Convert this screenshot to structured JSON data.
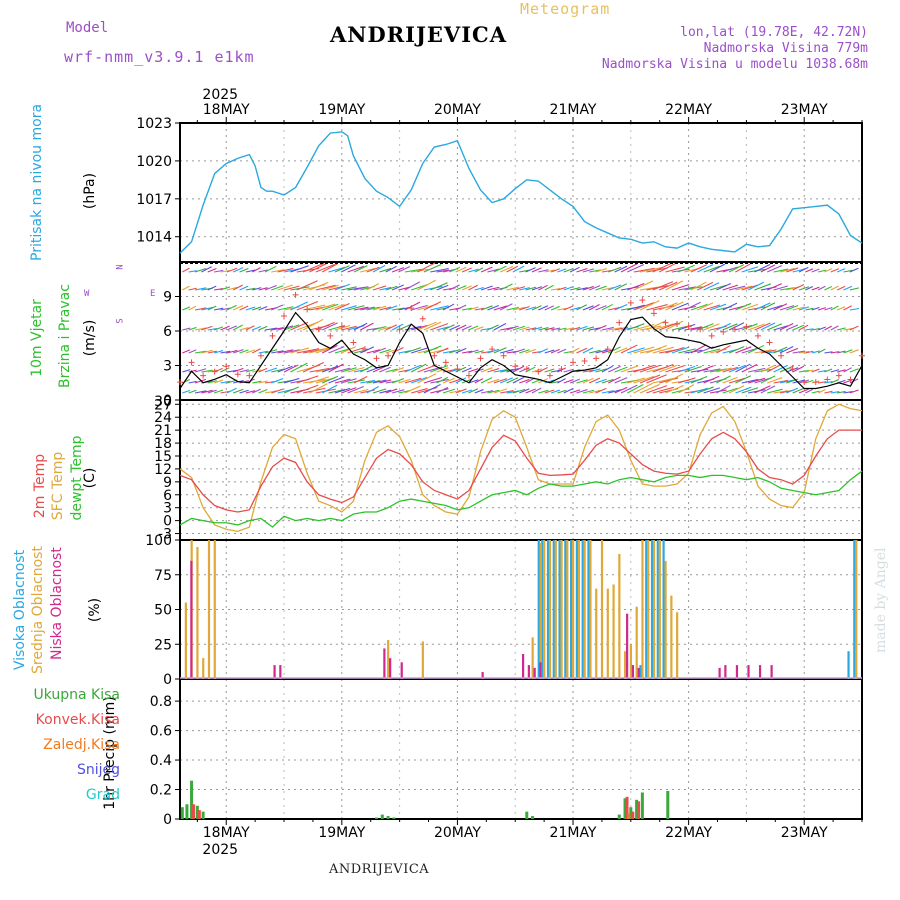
{
  "header": {
    "title": "ANDRIJEVICA",
    "bottom_title": "ANDRIJEVICA",
    "meteogram": "Meteogram",
    "model_label": "Model",
    "model_name": "wrf-nmm_v3.9.1 e1km",
    "lonlat": "lon,lat (19.78E, 42.72N)",
    "altitude": "Nadmorska Visina 779m",
    "altitude_model": "Nadmorska Visina u modelu 1038.68m",
    "watermark": "made by Angel"
  },
  "time_axis": {
    "year": "2025",
    "days": [
      "18MAY",
      "19MAY",
      "20MAY",
      "21MAY",
      "22MAY",
      "23MAY"
    ]
  },
  "panels": {
    "pressure": {
      "ylabel": "Pritisak na nivou mora",
      "unit": "(hPa)"
    },
    "wind": {
      "ylabel1": "10m Vjetar",
      "ylabel2": "Brzina i Pravac",
      "unit": "(m/s)",
      "compass": "N",
      "west": "W",
      "east": "E",
      "south": "S"
    },
    "temp": {
      "ylabel1": "2m Temp",
      "ylabel2": "SFC Temp",
      "ylabel3": "dewpt Temp",
      "unit": "(C)"
    },
    "cloud": {
      "ylabel1": "Visoka Oblacnost",
      "ylabel2": "Srednja Oblacnost",
      "ylabel3": "Niska Oblacnost",
      "unit": "(%)"
    },
    "precip": {
      "legend": [
        "Ukupna Kisa",
        "Konvek.Kisa",
        "Zaledj.Kisa",
        "Snijeg",
        "Grad"
      ],
      "unit": "1hr Precip (mm)"
    }
  },
  "colors": {
    "pressure": "#2aa8e0",
    "t2m": "#e84b4b",
    "sfc": "#e0a838",
    "dew": "#2cc22c",
    "high_cloud": "#2aa8e0",
    "mid_cloud": "#e0a838",
    "low_cloud": "#d0288c",
    "rain": "#3aa83a",
    "conv": "#e84b4b",
    "frz": "#f07a20",
    "snow": "#5050e0",
    "hail": "#28c8c8",
    "wind_line": "#000000",
    "wind_gust": "#e84b4b"
  },
  "chart_data": [
    {
      "type": "line",
      "name": "pressure",
      "x_day_range": [
        17.6,
        23.5
      ],
      "ylim": [
        1012,
        1023
      ],
      "yticks": [
        1014,
        1017,
        1020,
        1023
      ],
      "series": [
        {
          "x": [
            17.6,
            17.7,
            17.8,
            17.9,
            18.0,
            18.1,
            18.2,
            18.25,
            18.3,
            18.35,
            18.4,
            18.5,
            18.6,
            18.7,
            18.8,
            18.9,
            19.0,
            19.05,
            19.1,
            19.2,
            19.3,
            19.4,
            19.5,
            19.6,
            19.7,
            19.8,
            19.9,
            20.0,
            20.1,
            20.2,
            20.3,
            20.4,
            20.5,
            20.6,
            20.7,
            20.8,
            20.9,
            21.0,
            21.1,
            21.2,
            21.3,
            21.4,
            21.5,
            21.6,
            21.7,
            21.8,
            21.9,
            22.0,
            22.1,
            22.2,
            22.3,
            22.4,
            22.5,
            22.6,
            22.7,
            22.8,
            22.9,
            23.0,
            23.1,
            23.2,
            23.3,
            23.4,
            23.5
          ],
          "values": [
            1012.7,
            1013.6,
            1016.5,
            1019.0,
            1019.8,
            1020.2,
            1020.5,
            1019.6,
            1017.9,
            1017.6,
            1017.6,
            1017.3,
            1017.9,
            1019.5,
            1021.2,
            1022.2,
            1022.3,
            1022.0,
            1020.4,
            1018.6,
            1017.6,
            1017.1,
            1016.4,
            1017.7,
            1019.8,
            1021.1,
            1021.3,
            1021.6,
            1019.4,
            1017.7,
            1016.7,
            1017.0,
            1017.8,
            1018.5,
            1018.4,
            1017.7,
            1017.0,
            1016.4,
            1015.2,
            1014.7,
            1014.3,
            1013.9,
            1013.8,
            1013.5,
            1013.6,
            1013.2,
            1013.1,
            1013.5,
            1013.2,
            1013.0,
            1012.9,
            1012.8,
            1013.4,
            1013.2,
            1013.3,
            1014.6,
            1016.2,
            1016.3,
            1016.4,
            1016.5,
            1015.8,
            1014.1,
            1013.5
          ]
        }
      ]
    },
    {
      "type": "line",
      "name": "wind",
      "x_day_range": [
        17.6,
        23.5
      ],
      "ylim": [
        0,
        12
      ],
      "yticks": [
        0,
        3,
        6,
        9
      ],
      "series": [
        {
          "x": [
            17.6,
            17.7,
            17.8,
            17.9,
            18.0,
            18.1,
            18.2,
            18.3,
            18.4,
            18.5,
            18.6,
            18.7,
            18.8,
            18.9,
            19.0,
            19.1,
            19.2,
            19.3,
            19.4,
            19.5,
            19.6,
            19.7,
            19.8,
            19.9,
            20.0,
            20.1,
            20.2,
            20.3,
            20.4,
            20.5,
            20.6,
            20.7,
            20.8,
            20.9,
            21.0,
            21.1,
            21.2,
            21.3,
            21.4,
            21.5,
            21.6,
            21.7,
            21.8,
            21.9,
            22.0,
            22.1,
            22.2,
            22.3,
            22.4,
            22.5,
            22.6,
            22.7,
            22.8,
            22.9,
            23.0,
            23.1,
            23.2,
            23.3,
            23.4,
            23.5
          ],
          "values": [
            1.0,
            2.5,
            1.5,
            1.8,
            2.2,
            1.6,
            1.5,
            3.0,
            4.5,
            6.0,
            7.6,
            6.5,
            5.0,
            4.5,
            5.2,
            4.0,
            3.5,
            2.8,
            3.0,
            5.0,
            6.6,
            5.8,
            3.0,
            2.5,
            2.0,
            1.5,
            2.8,
            3.5,
            3.0,
            2.2,
            2.0,
            1.8,
            1.5,
            2.0,
            2.5,
            2.6,
            2.8,
            3.5,
            5.5,
            7.0,
            7.2,
            6.2,
            5.5,
            5.4,
            5.2,
            5.0,
            4.5,
            4.8,
            5.0,
            5.2,
            4.5,
            4.0,
            3.0,
            2.0,
            1.0,
            1.0,
            1.2,
            1.5,
            1.2,
            3.0
          ]
        }
      ]
    },
    {
      "type": "line",
      "name": "temperature",
      "x_day_range": [
        17.6,
        23.5
      ],
      "ylim": [
        -4.5,
        28
      ],
      "yticks": [
        -3,
        0,
        3,
        6,
        9,
        12,
        15,
        18,
        21,
        24,
        27
      ],
      "series": [
        {
          "name": "2m Temp",
          "x": [
            17.6,
            17.7,
            17.8,
            17.9,
            18.0,
            18.1,
            18.2,
            18.3,
            18.4,
            18.5,
            18.6,
            18.7,
            18.8,
            18.9,
            19.0,
            19.1,
            19.2,
            19.3,
            19.4,
            19.5,
            19.6,
            19.7,
            19.8,
            19.9,
            20.0,
            20.1,
            20.2,
            20.3,
            20.4,
            20.5,
            20.6,
            20.7,
            20.8,
            20.9,
            21.0,
            21.1,
            21.2,
            21.3,
            21.4,
            21.5,
            21.6,
            21.7,
            21.8,
            21.9,
            22.0,
            22.1,
            22.2,
            22.3,
            22.4,
            22.5,
            22.6,
            22.7,
            22.8,
            22.9,
            23.0,
            23.1,
            23.2,
            23.3,
            23.4,
            23.5
          ],
          "values": [
            10.5,
            9.5,
            6.0,
            3.5,
            2.5,
            2.0,
            2.5,
            8.0,
            12.5,
            14.5,
            13.5,
            9.0,
            6.0,
            5.0,
            4.2,
            5.5,
            10.0,
            14.5,
            16.5,
            15.5,
            13.0,
            9.0,
            7.0,
            6.0,
            5.0,
            7.0,
            12.0,
            17.0,
            19.8,
            18.5,
            14.5,
            11.0,
            10.5,
            10.6,
            10.8,
            14.0,
            17.5,
            19.0,
            18.0,
            15.5,
            13.0,
            11.5,
            11.0,
            10.8,
            11.5,
            15.5,
            19.0,
            20.5,
            19.0,
            16.0,
            12.0,
            10.0,
            9.5,
            8.5,
            10.5,
            15.0,
            19.0,
            21.0,
            21.0,
            21.0
          ]
        },
        {
          "name": "SFC Temp",
          "x": [
            17.6,
            17.7,
            17.8,
            17.9,
            18.0,
            18.1,
            18.2,
            18.3,
            18.4,
            18.5,
            18.6,
            18.7,
            18.8,
            18.9,
            19.0,
            19.1,
            19.2,
            19.3,
            19.4,
            19.5,
            19.6,
            19.7,
            19.8,
            19.9,
            20.0,
            20.1,
            20.2,
            20.3,
            20.4,
            20.5,
            20.6,
            20.7,
            20.8,
            20.9,
            21.0,
            21.1,
            21.2,
            21.3,
            21.4,
            21.5,
            21.6,
            21.7,
            21.8,
            21.9,
            22.0,
            22.1,
            22.2,
            22.3,
            22.4,
            22.5,
            22.6,
            22.7,
            22.8,
            22.9,
            23.0,
            23.1,
            23.2,
            23.3,
            23.4,
            23.5
          ],
          "values": [
            12.0,
            10.0,
            3.0,
            -1.0,
            -2.0,
            -2.5,
            -1.5,
            9.0,
            17.0,
            20.0,
            19.0,
            11.0,
            4.5,
            3.5,
            2.0,
            4.5,
            14.0,
            20.5,
            22.0,
            19.5,
            14.0,
            6.0,
            3.5,
            2.0,
            1.5,
            5.5,
            16.0,
            23.5,
            25.5,
            24.0,
            17.0,
            9.5,
            8.5,
            8.5,
            8.5,
            17.0,
            23.0,
            24.5,
            21.0,
            14.0,
            8.5,
            8.0,
            8.0,
            8.5,
            11.0,
            20.0,
            25.0,
            26.5,
            23.0,
            16.0,
            8.0,
            5.0,
            3.5,
            3.0,
            6.5,
            19.0,
            25.5,
            27.0,
            26.0,
            25.5
          ]
        },
        {
          "name": "dewpt Temp",
          "x": [
            17.6,
            17.7,
            17.8,
            17.9,
            18.0,
            18.1,
            18.2,
            18.3,
            18.4,
            18.5,
            18.6,
            18.7,
            18.8,
            18.9,
            19.0,
            19.1,
            19.2,
            19.3,
            19.4,
            19.5,
            19.6,
            19.7,
            19.8,
            19.9,
            20.0,
            20.1,
            20.2,
            20.3,
            20.4,
            20.5,
            20.6,
            20.7,
            20.8,
            20.9,
            21.0,
            21.1,
            21.2,
            21.3,
            21.4,
            21.5,
            21.6,
            21.7,
            21.8,
            21.9,
            22.0,
            22.1,
            22.2,
            22.3,
            22.4,
            22.5,
            22.6,
            22.7,
            22.8,
            22.9,
            23.0,
            23.1,
            23.2,
            23.3,
            23.4,
            23.5
          ],
          "values": [
            -1.0,
            0.5,
            0.0,
            -0.5,
            -0.5,
            -1.0,
            0.0,
            0.5,
            -1.5,
            1.0,
            0.0,
            0.5,
            0.0,
            0.5,
            0.0,
            1.5,
            2.0,
            2.0,
            3.0,
            4.5,
            5.0,
            4.5,
            4.0,
            3.5,
            2.5,
            3.0,
            4.5,
            6.0,
            6.5,
            7.0,
            6.0,
            7.5,
            8.5,
            8.0,
            8.0,
            8.5,
            9.0,
            8.5,
            9.5,
            10.0,
            9.5,
            9.0,
            10.0,
            10.5,
            10.5,
            10.0,
            10.5,
            10.5,
            10.0,
            9.5,
            10.0,
            9.0,
            7.5,
            7.0,
            6.5,
            6.0,
            6.5,
            7.0,
            9.5,
            11.5
          ]
        }
      ]
    },
    {
      "type": "bar",
      "name": "cloud cover",
      "x_day_range": [
        17.6,
        23.5
      ],
      "ylim": [
        0,
        100
      ],
      "yticks": [
        0,
        25,
        50,
        75,
        100
      ],
      "series": [
        {
          "name": "Visoka Oblacnost",
          "x": [
            20.72,
            20.75,
            20.8,
            20.85,
            20.9,
            20.95,
            21.0,
            21.05,
            21.1,
            21.15,
            21.6,
            21.65,
            21.7,
            21.75,
            21.8,
            23.4,
            23.45
          ],
          "values": [
            100,
            100,
            100,
            100,
            100,
            100,
            100,
            100,
            100,
            100,
            10,
            100,
            100,
            100,
            100,
            20,
            100
          ]
        },
        {
          "name": "Srednja Oblacnost",
          "x": [
            17.65,
            17.7,
            17.75,
            17.8,
            17.85,
            17.9,
            19.4,
            19.7,
            20.65,
            20.72,
            20.75,
            20.8,
            20.85,
            20.9,
            20.95,
            21.0,
            21.05,
            21.1,
            21.15,
            21.2,
            21.25,
            21.3,
            21.35,
            21.4,
            21.45,
            21.5,
            21.55,
            21.6,
            21.65,
            21.7,
            21.75,
            21.8,
            21.85,
            21.9,
            23.45
          ],
          "values": [
            55,
            100,
            95,
            15,
            100,
            100,
            28,
            27,
            30,
            98,
            100,
            100,
            100,
            100,
            100,
            100,
            100,
            100,
            100,
            65,
            100,
            65,
            68,
            90,
            20,
            25,
            52,
            100,
            100,
            100,
            100,
            85,
            60,
            48,
            100
          ]
        },
        {
          "name": "Niska Oblacnost",
          "x": [
            17.68,
            18.4,
            18.45,
            19.35,
            19.4,
            19.5,
            20.2,
            20.55,
            20.6,
            20.65,
            20.7,
            21.45,
            21.5,
            21.55,
            22.25,
            22.3,
            22.4,
            22.5,
            22.6,
            22.7
          ],
          "values": [
            85,
            10,
            10,
            22,
            15,
            12,
            5,
            18,
            10,
            8,
            12,
            47,
            10,
            8,
            8,
            10,
            10,
            10,
            10,
            10
          ]
        }
      ]
    },
    {
      "type": "bar",
      "name": "precipitation",
      "x_day_range": [
        17.6,
        23.5
      ],
      "ylim": [
        0,
        0.95
      ],
      "yticks": [
        0,
        0.2,
        0.4,
        0.6,
        0.8
      ],
      "series": [
        {
          "name": "Ukupna Kisa",
          "x": [
            17.62,
            17.66,
            17.7,
            17.75,
            17.8,
            19.3,
            19.35,
            19.4,
            19.45,
            20.6,
            20.65,
            21.4,
            21.45,
            21.5,
            21.55,
            21.6,
            21.82
          ],
          "values": [
            0.08,
            0.1,
            0.26,
            0.09,
            0.05,
            0.01,
            0.03,
            0.02,
            0.01,
            0.05,
            0.02,
            0.03,
            0.14,
            0.08,
            0.13,
            0.18,
            0.19
          ]
        },
        {
          "name": "Konvek.Kisa",
          "x": [
            17.7,
            17.75,
            21.45,
            21.5,
            21.55
          ],
          "values": [
            0.1,
            0.06,
            0.15,
            0.05,
            0.12
          ]
        },
        {
          "name": "Zaledj.Kisa",
          "x": [
            21.5
          ],
          "values": [
            0.04
          ]
        }
      ]
    }
  ]
}
